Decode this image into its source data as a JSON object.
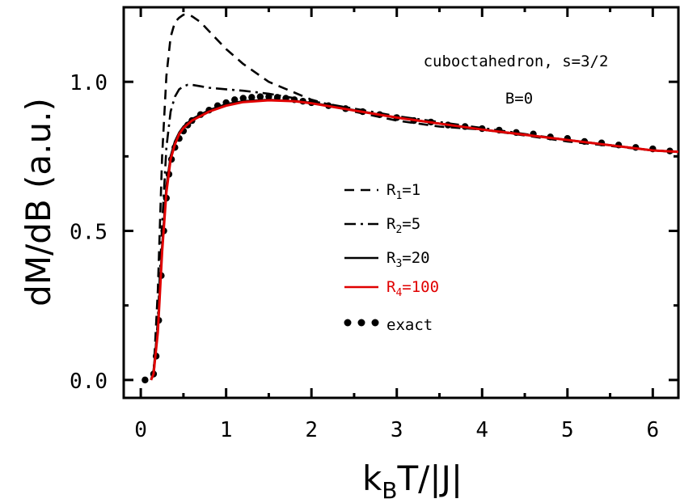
{
  "chart_data": {
    "type": "line",
    "xlabel": "k_BT/|J|",
    "xlabel_main": "k",
    "xlabel_sub": "B",
    "xlabel_rest": "T/|J|",
    "ylabel": "dM/dB  (a.u.)",
    "xlim": [
      -0.2,
      6.3
    ],
    "ylim": [
      -0.06,
      1.25
    ],
    "x_ticks": [
      0,
      1,
      2,
      3,
      4,
      5,
      6
    ],
    "x_tick_labels": [
      "0",
      "1",
      "2",
      "3",
      "4",
      "5",
      "6"
    ],
    "y_ticks": [
      0.0,
      0.5,
      1.0
    ],
    "y_tick_labels": [
      "0.0",
      "0.5",
      "1.0"
    ],
    "grid": false,
    "legend_position": "center-right",
    "annotations": [
      "cuboctahedron, s=3/2",
      "B=0"
    ],
    "series": [
      {
        "name": "R1=1",
        "label_main": "R",
        "label_sub": "1",
        "label_rest": "=1",
        "style": "dashed",
        "color": "#000000",
        "x": [
          0.15,
          0.2,
          0.25,
          0.3,
          0.35,
          0.4,
          0.45,
          0.5,
          0.55,
          0.6,
          0.7,
          0.8,
          1.0,
          1.2,
          1.5,
          2.0,
          2.5,
          3.0,
          3.5,
          4.0,
          5.0,
          6.0,
          6.3
        ],
        "y": [
          0.02,
          0.3,
          0.75,
          1.02,
          1.15,
          1.2,
          1.215,
          1.225,
          1.225,
          1.22,
          1.2,
          1.17,
          1.11,
          1.06,
          1.0,
          0.94,
          0.9,
          0.87,
          0.85,
          0.84,
          0.8,
          0.77,
          0.765
        ]
      },
      {
        "name": "R2=5",
        "label_main": "R",
        "label_sub": "2",
        "label_rest": "=5",
        "style": "dashdot",
        "color": "#000000",
        "x": [
          0.15,
          0.2,
          0.25,
          0.3,
          0.35,
          0.4,
          0.45,
          0.5,
          0.55,
          0.6,
          0.7,
          0.8,
          1.0,
          1.2,
          1.5,
          2.0,
          2.5,
          3.0,
          3.5,
          4.0,
          5.0,
          6.0,
          6.3
        ],
        "y": [
          0.01,
          0.2,
          0.52,
          0.78,
          0.9,
          0.95,
          0.975,
          0.985,
          0.99,
          0.99,
          0.985,
          0.98,
          0.975,
          0.97,
          0.96,
          0.935,
          0.91,
          0.885,
          0.865,
          0.845,
          0.805,
          0.77,
          0.765
        ]
      },
      {
        "name": "R3=20",
        "label_main": "R",
        "label_sub": "3",
        "label_rest": "=20",
        "style": "solid",
        "color": "#000000",
        "x": [
          0.12,
          0.15,
          0.2,
          0.25,
          0.3,
          0.35,
          0.4,
          0.45,
          0.5,
          0.6,
          0.7,
          0.8,
          1.0,
          1.2,
          1.5,
          1.8,
          2.0,
          2.5,
          3.0,
          3.5,
          4.0,
          5.0,
          6.0,
          6.3
        ],
        "y": [
          0.0,
          0.03,
          0.18,
          0.45,
          0.65,
          0.75,
          0.8,
          0.83,
          0.85,
          0.875,
          0.89,
          0.905,
          0.925,
          0.935,
          0.94,
          0.935,
          0.93,
          0.905,
          0.88,
          0.86,
          0.84,
          0.805,
          0.77,
          0.765
        ]
      },
      {
        "name": "R4=100",
        "label_main": "R",
        "label_sub": "4",
        "label_rest": "=100",
        "style": "solid",
        "color": "#e00000",
        "x": [
          0.12,
          0.15,
          0.2,
          0.25,
          0.3,
          0.35,
          0.4,
          0.45,
          0.5,
          0.6,
          0.7,
          0.8,
          1.0,
          1.2,
          1.5,
          1.8,
          2.0,
          2.5,
          3.0,
          3.5,
          4.0,
          5.0,
          6.0,
          6.3
        ],
        "y": [
          0.0,
          0.02,
          0.16,
          0.43,
          0.63,
          0.74,
          0.79,
          0.825,
          0.845,
          0.87,
          0.885,
          0.9,
          0.92,
          0.932,
          0.938,
          0.935,
          0.928,
          0.904,
          0.88,
          0.86,
          0.84,
          0.805,
          0.77,
          0.765
        ]
      },
      {
        "name": "exact",
        "label_main": "exact",
        "label_sub": "",
        "label_rest": "",
        "style": "dotted-markers",
        "color": "#000000",
        "x": [
          0.05,
          0.15,
          0.18,
          0.21,
          0.24,
          0.27,
          0.3,
          0.33,
          0.36,
          0.4,
          0.45,
          0.5,
          0.55,
          0.6,
          0.7,
          0.8,
          0.9,
          1.0,
          1.1,
          1.2,
          1.3,
          1.4,
          1.5,
          1.6,
          1.7,
          1.8,
          1.9,
          2.0,
          2.2,
          2.4,
          2.6,
          2.8,
          3.0,
          3.2,
          3.4,
          3.6,
          3.8,
          4.0,
          4.2,
          4.4,
          4.6,
          4.8,
          5.0,
          5.2,
          5.4,
          5.6,
          5.8,
          6.0,
          6.2
        ],
        "y": [
          0.0,
          0.02,
          0.08,
          0.2,
          0.35,
          0.5,
          0.61,
          0.69,
          0.74,
          0.78,
          0.81,
          0.835,
          0.855,
          0.87,
          0.89,
          0.905,
          0.92,
          0.93,
          0.94,
          0.945,
          0.948,
          0.95,
          0.95,
          0.948,
          0.945,
          0.94,
          0.935,
          0.93,
          0.92,
          0.91,
          0.9,
          0.89,
          0.88,
          0.87,
          0.865,
          0.855,
          0.85,
          0.843,
          0.838,
          0.83,
          0.825,
          0.815,
          0.81,
          0.8,
          0.795,
          0.788,
          0.78,
          0.775,
          0.768
        ]
      }
    ]
  }
}
